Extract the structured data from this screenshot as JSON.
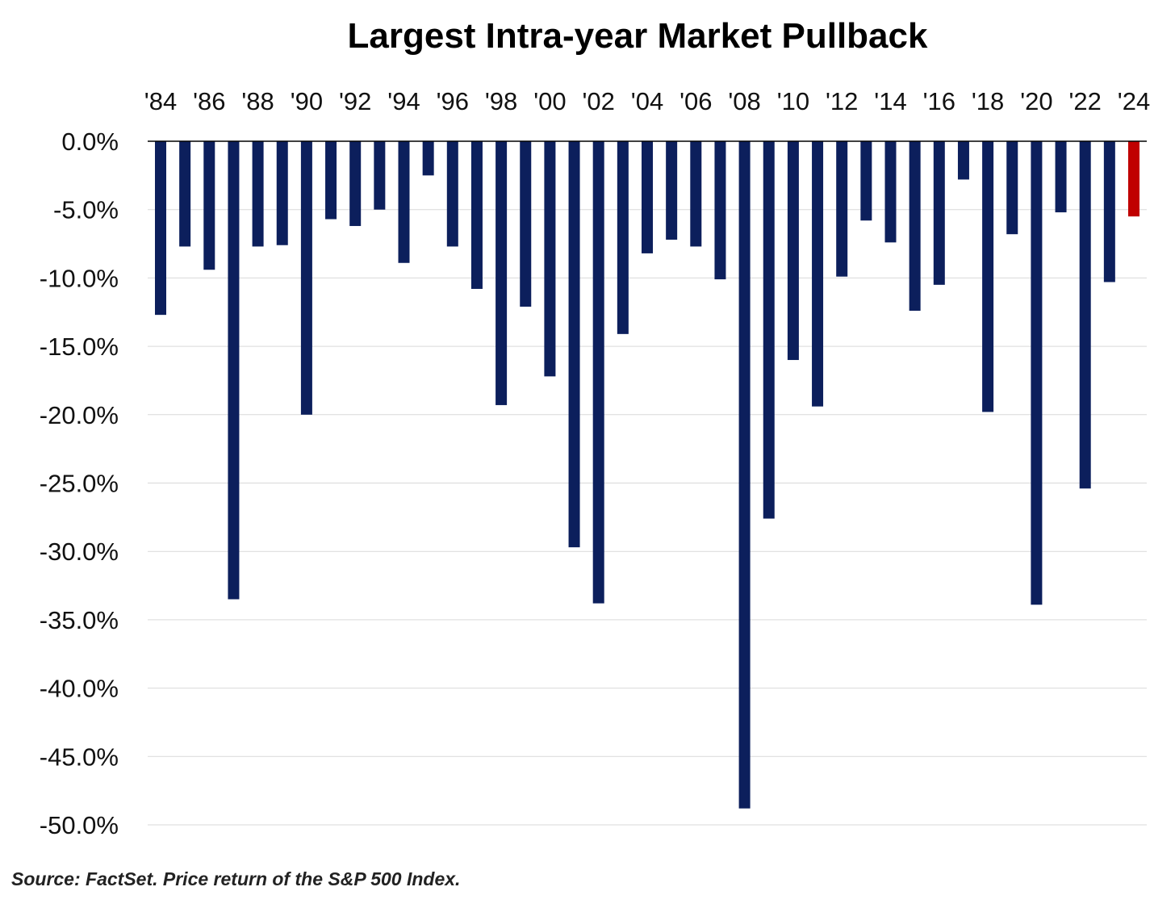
{
  "chart_data": {
    "type": "bar",
    "title": "Largest Intra-year Market Pullback",
    "source": "Source: FactSet. Price return of the S&P 500 Index.",
    "categories": [
      "'84",
      "'85",
      "'86",
      "'87",
      "'88",
      "'89",
      "'90",
      "'91",
      "'92",
      "'93",
      "'94",
      "'95",
      "'96",
      "'97",
      "'98",
      "'99",
      "'00",
      "'01",
      "'02",
      "'03",
      "'04",
      "'05",
      "'06",
      "'07",
      "'08",
      "'09",
      "'10",
      "'11",
      "'12",
      "'13",
      "'14",
      "'15",
      "'16",
      "'17",
      "'18",
      "'19",
      "'20",
      "'21",
      "'22",
      "'23",
      "'24"
    ],
    "x_tick_labels": [
      "'84",
      "'86",
      "'88",
      "'90",
      "'92",
      "'94",
      "'96",
      "'98",
      "'00",
      "'02",
      "'04",
      "'06",
      "'08",
      "'10",
      "'12",
      "'14",
      "'16",
      "'18",
      "'20",
      "'22",
      "'24"
    ],
    "values": [
      -12.7,
      -7.7,
      -9.4,
      -33.5,
      -7.7,
      -7.6,
      -20.0,
      -5.7,
      -6.2,
      -5.0,
      -8.9,
      -2.5,
      -7.7,
      -10.8,
      -19.3,
      -12.1,
      -17.2,
      -29.7,
      -33.8,
      -14.1,
      -8.2,
      -7.2,
      -7.7,
      -10.1,
      -48.8,
      -27.6,
      -16.0,
      -19.4,
      -9.9,
      -5.8,
      -7.4,
      -12.4,
      -10.5,
      -2.8,
      -19.8,
      -6.8,
      -33.9,
      -5.2,
      -25.4,
      -10.3,
      -5.5
    ],
    "highlight_index": 40,
    "colors": {
      "bar": "#0c1f5c",
      "highlight": "#c00000",
      "grid": "#d9d9d9",
      "axis": "#000000"
    },
    "y_tick_labels": [
      "0.0%",
      "-5.0%",
      "-10.0%",
      "-15.0%",
      "-20.0%",
      "-25.0%",
      "-30.0%",
      "-35.0%",
      "-40.0%",
      "-45.0%",
      "-50.0%"
    ],
    "ylim": [
      -50,
      0
    ],
    "x_axis_position": "top",
    "grid": true,
    "legend": "none",
    "xlabel": "",
    "ylabel": ""
  }
}
